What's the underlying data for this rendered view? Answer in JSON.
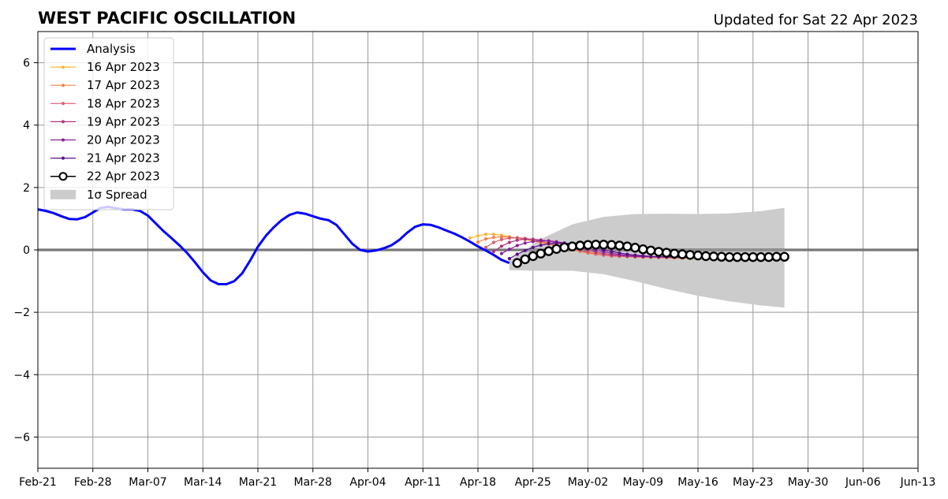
{
  "chart_data": {
    "type": "line",
    "title": "WEST PACIFIC OSCILLATION",
    "subtitle": "Updated for Sat 22 Apr 2023",
    "xlabel": "",
    "ylabel": "",
    "xlim": [
      "2023-02-21",
      "2023-06-13"
    ],
    "ylim": [
      -7,
      7
    ],
    "x_tick_labels": [
      "Feb-21",
      "Feb-28",
      "Mar-07",
      "Mar-14",
      "Mar-21",
      "Mar-28",
      "Apr-04",
      "Apr-11",
      "Apr-18",
      "Apr-25",
      "May-02",
      "May-09",
      "May-16",
      "May-23",
      "May-30",
      "Jun-06",
      "Jun-13"
    ],
    "y_ticks": [
      6,
      4,
      2,
      0,
      -2,
      -4,
      -6
    ],
    "y_tick_labels": [
      "6",
      "4",
      "2",
      "0",
      "−2",
      "−4",
      "−6"
    ],
    "grid": true,
    "legend_position": "top-left",
    "colors": {
      "analysis": "#0000ff",
      "spread": "#cccccc",
      "zero_line": "#555555",
      "grid": "#999999"
    },
    "legend": [
      {
        "label": "Analysis",
        "color": "#0000ff",
        "kind": "thick-line"
      },
      {
        "label": "16 Apr 2023",
        "color": "#fbb539",
        "kind": "dot-line"
      },
      {
        "label": "17 Apr 2023",
        "color": "#f1844b",
        "kind": "dot-line"
      },
      {
        "label": "18 Apr 2023",
        "color": "#d95f6d",
        "kind": "dot-line"
      },
      {
        "label": "19 Apr 2023",
        "color": "#b0347f",
        "kind": "dot-line"
      },
      {
        "label": "20 Apr 2023",
        "color": "#8a229a",
        "kind": "dot-line"
      },
      {
        "label": "21 Apr 2023",
        "color": "#5c0f8a",
        "kind": "dot-line"
      },
      {
        "label": "22 Apr 2023",
        "color": "#000000",
        "kind": "circle-line"
      },
      {
        "label": "1σ Spread",
        "color": "#cccccc",
        "kind": "patch"
      }
    ],
    "analysis": {
      "name": "Analysis",
      "x": [
        "2023-02-21",
        "2023-02-22",
        "2023-02-23",
        "2023-02-24",
        "2023-02-25",
        "2023-02-26",
        "2023-02-27",
        "2023-02-28",
        "2023-03-01",
        "2023-03-02",
        "2023-03-03",
        "2023-03-04",
        "2023-03-05",
        "2023-03-06",
        "2023-03-07",
        "2023-03-08",
        "2023-03-09",
        "2023-03-10",
        "2023-03-11",
        "2023-03-12",
        "2023-03-13",
        "2023-03-14",
        "2023-03-15",
        "2023-03-16",
        "2023-03-17",
        "2023-03-18",
        "2023-03-19",
        "2023-03-20",
        "2023-03-21",
        "2023-03-22",
        "2023-03-23",
        "2023-03-24",
        "2023-03-25",
        "2023-03-26",
        "2023-03-27",
        "2023-03-28",
        "2023-03-29",
        "2023-03-30",
        "2023-03-31",
        "2023-04-01",
        "2023-04-02",
        "2023-04-03",
        "2023-04-04",
        "2023-04-05",
        "2023-04-06",
        "2023-04-07",
        "2023-04-08",
        "2023-04-09",
        "2023-04-10",
        "2023-04-11",
        "2023-04-12",
        "2023-04-13",
        "2023-04-14",
        "2023-04-15",
        "2023-04-16",
        "2023-04-17",
        "2023-04-18",
        "2023-04-19",
        "2023-04-20",
        "2023-04-21",
        "2023-04-22"
      ],
      "y": [
        1.3,
        1.25,
        1.18,
        1.08,
        0.99,
        0.98,
        1.05,
        1.2,
        1.35,
        1.38,
        1.33,
        1.3,
        1.3,
        1.25,
        1.1,
        0.85,
        0.6,
        0.38,
        0.15,
        -0.1,
        -0.4,
        -0.72,
        -0.98,
        -1.1,
        -1.1,
        -1.0,
        -0.75,
        -0.35,
        0.1,
        0.45,
        0.72,
        0.95,
        1.12,
        1.2,
        1.16,
        1.08,
        1.0,
        0.95,
        0.8,
        0.5,
        0.2,
        0.0,
        -0.05,
        -0.02,
        0.05,
        0.15,
        0.32,
        0.55,
        0.74,
        0.82,
        0.8,
        0.72,
        0.62,
        0.52,
        0.4,
        0.26,
        0.11,
        -0.02,
        -0.16,
        -0.32,
        -0.42
      ]
    },
    "spread": {
      "name": "1σ Spread",
      "x": [
        "2023-04-22",
        "2023-04-26",
        "2023-04-30",
        "2023-05-04",
        "2023-05-08",
        "2023-05-12",
        "2023-05-16",
        "2023-05-20",
        "2023-05-24",
        "2023-05-27"
      ],
      "upper": [
        -0.35,
        0.35,
        0.82,
        1.06,
        1.15,
        1.16,
        1.15,
        1.17,
        1.24,
        1.35
      ],
      "lower": [
        -0.65,
        -0.67,
        -0.67,
        -0.78,
        -1.0,
        -1.25,
        -1.47,
        -1.65,
        -1.78,
        -1.85
      ]
    },
    "series": [
      {
        "name": "16 Apr 2023",
        "color": "#fbb539",
        "start": "2023-04-17",
        "values": [
          0.38,
          0.45,
          0.5,
          0.5,
          0.47,
          0.42,
          0.38,
          0.33,
          0.28,
          0.23,
          0.18,
          0.12,
          0.06,
          0.0,
          -0.04,
          -0.07,
          -0.1,
          -0.12,
          -0.14,
          -0.16,
          -0.18,
          -0.2,
          -0.21,
          -0.22,
          -0.24,
          -0.25,
          -0.26,
          -0.27,
          -0.27,
          -0.28
        ]
      },
      {
        "name": "17 Apr 2023",
        "color": "#f1844b",
        "start": "2023-04-18",
        "values": [
          0.25,
          0.35,
          0.4,
          0.42,
          0.41,
          0.38,
          0.34,
          0.29,
          0.24,
          0.19,
          0.13,
          0.07,
          0.01,
          -0.05,
          -0.1,
          -0.14,
          -0.17,
          -0.2,
          -0.21,
          -0.22,
          -0.23,
          -0.24,
          -0.24,
          -0.25,
          -0.25,
          -0.26,
          -0.26,
          -0.26,
          -0.25
        ]
      },
      {
        "name": "18 Apr 2023",
        "color": "#d95f6d",
        "start": "2023-04-19",
        "values": [
          0.08,
          0.24,
          0.33,
          0.38,
          0.39,
          0.37,
          0.33,
          0.28,
          0.22,
          0.16,
          0.1,
          0.04,
          -0.02,
          -0.08,
          -0.13,
          -0.17,
          -0.19,
          -0.2,
          -0.21,
          -0.22,
          -0.22,
          -0.23,
          -0.23,
          -0.23,
          -0.24,
          -0.24,
          -0.24,
          -0.24
        ]
      },
      {
        "name": "19 Apr 2023",
        "color": "#b0347f",
        "start": "2023-04-20",
        "values": [
          -0.05,
          0.12,
          0.24,
          0.31,
          0.34,
          0.34,
          0.32,
          0.28,
          0.23,
          0.17,
          0.11,
          0.05,
          -0.01,
          -0.07,
          -0.12,
          -0.16,
          -0.18,
          -0.2,
          -0.21,
          -0.22,
          -0.22,
          -0.23,
          -0.23,
          -0.23,
          -0.24,
          -0.24,
          -0.24
        ]
      },
      {
        "name": "20 Apr 2023",
        "color": "#8a229a",
        "start": "2023-04-21",
        "values": [
          -0.12,
          0.02,
          0.14,
          0.22,
          0.27,
          0.29,
          0.29,
          0.26,
          0.22,
          0.17,
          0.11,
          0.05,
          -0.01,
          -0.06,
          -0.11,
          -0.15,
          -0.18,
          -0.2,
          -0.21,
          -0.22,
          -0.22,
          -0.23,
          -0.23,
          -0.23,
          -0.24,
          -0.24
        ]
      },
      {
        "name": "21 Apr 2023",
        "color": "#5c0f8a",
        "start": "2023-04-22",
        "values": [
          -0.28,
          -0.14,
          -0.02,
          0.08,
          0.15,
          0.2,
          0.22,
          0.22,
          0.2,
          0.16,
          0.11,
          0.06,
          0.0,
          -0.05,
          -0.1,
          -0.14,
          -0.17,
          -0.19,
          -0.21,
          -0.22,
          -0.22,
          -0.23,
          -0.23,
          -0.24,
          -0.24
        ]
      },
      {
        "name": "22 Apr 2023",
        "color": "#000000",
        "start": "2023-04-23",
        "marker": "circle",
        "values": [
          -0.42,
          -0.3,
          -0.2,
          -0.12,
          -0.04,
          0.03,
          0.08,
          0.11,
          0.14,
          0.16,
          0.17,
          0.17,
          0.16,
          0.14,
          0.11,
          0.07,
          0.02,
          -0.02,
          -0.06,
          -0.09,
          -0.12,
          -0.14,
          -0.16,
          -0.18,
          -0.2,
          -0.21,
          -0.22,
          -0.23,
          -0.23,
          -0.23,
          -0.23,
          -0.23,
          -0.23,
          -0.22,
          -0.22
        ]
      }
    ]
  }
}
